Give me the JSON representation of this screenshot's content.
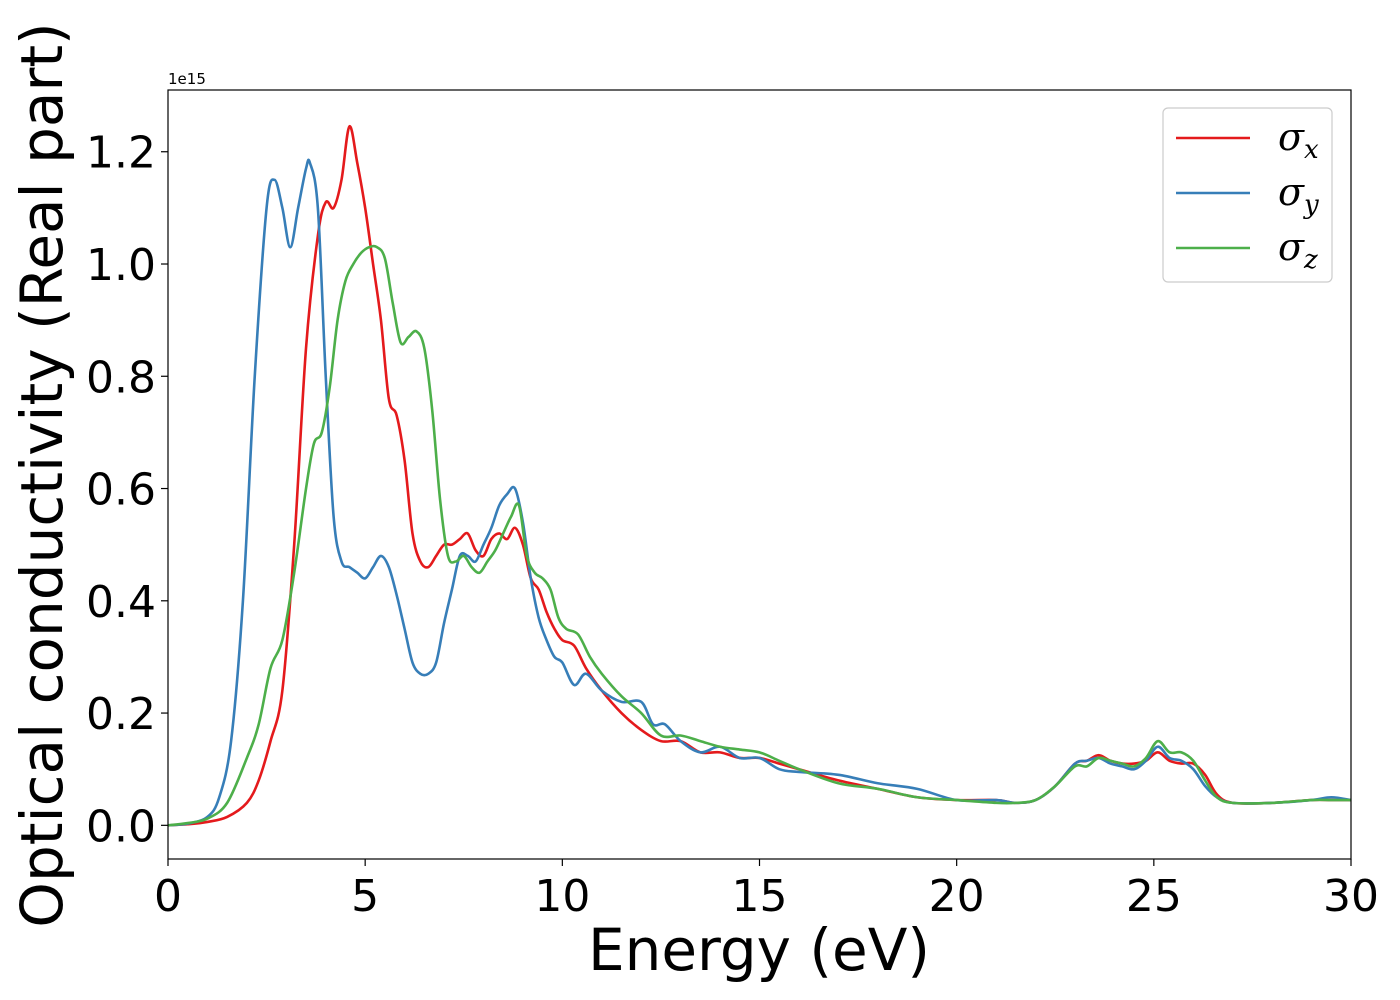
{
  "chart_data": {
    "type": "line",
    "xlabel": "Energy (eV)",
    "ylabel": "Optical conductivity (Real part)",
    "y_offset_text": "1e15",
    "xlim": [
      0,
      30
    ],
    "ylim": [
      -0.06,
      1.31
    ],
    "x_ticks": [
      "0",
      "5",
      "10",
      "15",
      "20",
      "25",
      "30"
    ],
    "x_tick_values": [
      0,
      5,
      10,
      15,
      20,
      25,
      30
    ],
    "y_ticks": [
      "0.0",
      "0.2",
      "0.4",
      "0.6",
      "0.8",
      "1.0",
      "1.2"
    ],
    "y_tick_values": [
      0.0,
      0.2,
      0.4,
      0.6,
      0.8,
      1.0,
      1.2
    ],
    "legend_position": "upper right",
    "grid": false,
    "series": [
      {
        "name": "σx",
        "symbol": "σ",
        "subscript": "x",
        "color": "#e41a1c",
        "x": [
          0,
          0.5,
          1,
          1.5,
          2,
          2.3,
          2.6,
          2.9,
          3.2,
          3.5,
          3.8,
          4.0,
          4.2,
          4.4,
          4.6,
          4.8,
          5.0,
          5.2,
          5.4,
          5.6,
          5.8,
          6.0,
          6.2,
          6.4,
          6.6,
          6.8,
          7.0,
          7.2,
          7.4,
          7.6,
          7.8,
          8.0,
          8.2,
          8.4,
          8.6,
          8.8,
          9.0,
          9.2,
          9.4,
          9.6,
          9.8,
          10.0,
          10.3,
          10.6,
          11.0,
          11.5,
          12.0,
          12.5,
          13.0,
          13.5,
          14.0,
          14.5,
          15.0,
          15.5,
          16.0,
          17.0,
          18.0,
          19.0,
          20.0,
          21.0,
          21.5,
          22.0,
          22.5,
          23.0,
          23.3,
          23.6,
          23.9,
          24.2,
          24.5,
          24.8,
          25.1,
          25.4,
          25.7,
          26.0,
          26.3,
          26.6,
          27.0,
          28.0,
          29.0,
          29.5,
          30.0
        ],
        "y": [
          0.0,
          0.002,
          0.006,
          0.015,
          0.04,
          0.08,
          0.15,
          0.24,
          0.5,
          0.85,
          1.05,
          1.11,
          1.1,
          1.15,
          1.245,
          1.18,
          1.1,
          1.0,
          0.9,
          0.76,
          0.73,
          0.65,
          0.52,
          0.47,
          0.46,
          0.48,
          0.5,
          0.5,
          0.51,
          0.52,
          0.49,
          0.48,
          0.51,
          0.52,
          0.51,
          0.53,
          0.5,
          0.44,
          0.42,
          0.38,
          0.35,
          0.33,
          0.32,
          0.28,
          0.24,
          0.2,
          0.17,
          0.15,
          0.15,
          0.13,
          0.13,
          0.12,
          0.12,
          0.11,
          0.1,
          0.08,
          0.065,
          0.05,
          0.045,
          0.045,
          0.04,
          0.045,
          0.07,
          0.11,
          0.115,
          0.125,
          0.115,
          0.11,
          0.11,
          0.115,
          0.13,
          0.115,
          0.11,
          0.11,
          0.09,
          0.055,
          0.04,
          0.04,
          0.045,
          0.045,
          0.045
        ]
      },
      {
        "name": "σy",
        "symbol": "σ",
        "subscript": "y",
        "color": "#377eb8",
        "x": [
          0,
          0.5,
          1,
          1.3,
          1.6,
          1.9,
          2.2,
          2.5,
          2.7,
          2.9,
          3.1,
          3.3,
          3.5,
          3.6,
          3.8,
          4.0,
          4.2,
          4.4,
          4.6,
          4.8,
          5.0,
          5.2,
          5.4,
          5.6,
          5.8,
          6.0,
          6.2,
          6.4,
          6.6,
          6.8,
          7.0,
          7.2,
          7.4,
          7.6,
          7.8,
          8.0,
          8.2,
          8.4,
          8.6,
          8.8,
          9.0,
          9.2,
          9.4,
          9.6,
          9.8,
          10.0,
          10.3,
          10.6,
          11.0,
          11.5,
          12.0,
          12.3,
          12.6,
          13.0,
          13.5,
          14.0,
          14.5,
          15.0,
          15.5,
          16.0,
          17.0,
          18.0,
          19.0,
          20.0,
          21.0,
          21.5,
          22.0,
          22.5,
          23.0,
          23.3,
          23.6,
          23.9,
          24.2,
          24.5,
          24.8,
          25.1,
          25.4,
          25.7,
          26.0,
          26.3,
          26.6,
          27.0,
          28.0,
          29.0,
          29.5,
          30.0
        ],
        "y": [
          0.0,
          0.003,
          0.015,
          0.05,
          0.15,
          0.4,
          0.8,
          1.1,
          1.15,
          1.1,
          1.03,
          1.1,
          1.17,
          1.18,
          1.1,
          0.8,
          0.55,
          0.47,
          0.46,
          0.45,
          0.44,
          0.46,
          0.48,
          0.46,
          0.41,
          0.35,
          0.29,
          0.27,
          0.27,
          0.29,
          0.36,
          0.42,
          0.48,
          0.48,
          0.47,
          0.5,
          0.53,
          0.57,
          0.59,
          0.6,
          0.54,
          0.44,
          0.37,
          0.33,
          0.3,
          0.29,
          0.25,
          0.27,
          0.24,
          0.22,
          0.22,
          0.18,
          0.18,
          0.15,
          0.13,
          0.14,
          0.12,
          0.12,
          0.1,
          0.095,
          0.09,
          0.075,
          0.065,
          0.045,
          0.045,
          0.04,
          0.045,
          0.07,
          0.11,
          0.115,
          0.12,
          0.11,
          0.105,
          0.1,
          0.115,
          0.14,
          0.12,
          0.115,
          0.1,
          0.07,
          0.05,
          0.04,
          0.04,
          0.045,
          0.05,
          0.045
        ]
      },
      {
        "name": "σz",
        "symbol": "σ",
        "subscript": "z",
        "color": "#4daf4a",
        "x": [
          0,
          0.5,
          1,
          1.5,
          2,
          2.3,
          2.6,
          2.9,
          3.2,
          3.5,
          3.7,
          3.9,
          4.1,
          4.3,
          4.5,
          4.7,
          4.9,
          5.1,
          5.3,
          5.5,
          5.7,
          5.9,
          6.1,
          6.3,
          6.5,
          6.7,
          6.9,
          7.1,
          7.3,
          7.5,
          7.7,
          7.9,
          8.1,
          8.3,
          8.5,
          8.7,
          8.9,
          9.1,
          9.3,
          9.5,
          9.7,
          9.9,
          10.1,
          10.4,
          10.7,
          11.0,
          11.5,
          12.0,
          12.5,
          13.0,
          13.5,
          14.0,
          14.5,
          15.0,
          15.5,
          16.0,
          17.0,
          18.0,
          19.0,
          20.0,
          21.0,
          21.5,
          22.0,
          22.5,
          23.0,
          23.3,
          23.6,
          23.9,
          24.2,
          24.5,
          24.8,
          25.1,
          25.4,
          25.7,
          26.0,
          26.3,
          26.6,
          27.0,
          28.0,
          29.0,
          29.5,
          30.0
        ],
        "y": [
          0.0,
          0.004,
          0.012,
          0.04,
          0.12,
          0.18,
          0.28,
          0.33,
          0.45,
          0.6,
          0.68,
          0.7,
          0.78,
          0.9,
          0.97,
          1.0,
          1.02,
          1.03,
          1.03,
          1.01,
          0.93,
          0.86,
          0.87,
          0.88,
          0.85,
          0.74,
          0.58,
          0.48,
          0.47,
          0.48,
          0.46,
          0.45,
          0.47,
          0.49,
          0.52,
          0.55,
          0.57,
          0.48,
          0.45,
          0.44,
          0.42,
          0.37,
          0.35,
          0.34,
          0.3,
          0.27,
          0.23,
          0.2,
          0.16,
          0.16,
          0.15,
          0.14,
          0.135,
          0.13,
          0.115,
          0.1,
          0.075,
          0.065,
          0.05,
          0.045,
          0.04,
          0.04,
          0.045,
          0.07,
          0.105,
          0.105,
          0.12,
          0.115,
          0.11,
          0.105,
          0.12,
          0.15,
          0.13,
          0.13,
          0.115,
          0.08,
          0.05,
          0.04,
          0.04,
          0.045,
          0.045,
          0.045
        ]
      }
    ]
  }
}
